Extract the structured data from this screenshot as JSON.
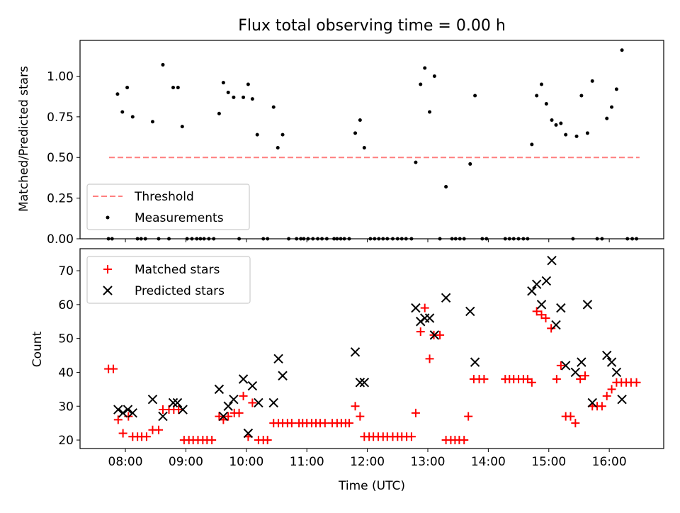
{
  "chart_data": [
    {
      "type": "scatter",
      "title": "Flux total observing time = 0.00 h",
      "xlabel": "",
      "ylabel": "Matched/Predicted stars",
      "xlim": [
        7.25,
        16.9
      ],
      "ylim": [
        0,
        1.22
      ],
      "yticks": [
        0,
        0.25,
        0.5,
        0.75,
        1.0
      ],
      "ytick_labels": [
        "0.00",
        "0.25",
        "0.50",
        "0.75",
        "1.00"
      ],
      "grid": false,
      "legend_position": "bottom-left",
      "threshold": {
        "name": "Threshold",
        "value": 0.5,
        "x_range": [
          7.73,
          16.5
        ],
        "color": "#ff7f7f"
      },
      "series": [
        {
          "name": "Measurements",
          "color": "#000000",
          "points": [
            [
              7.72,
              0
            ],
            [
              7.78,
              0
            ],
            [
              7.87,
              0.89
            ],
            [
              7.95,
              0.78
            ],
            [
              8.03,
              0.93
            ],
            [
              8.12,
              0.75
            ],
            [
              8.2,
              0
            ],
            [
              8.26,
              0
            ],
            [
              8.33,
              0
            ],
            [
              8.45,
              0.72
            ],
            [
              8.55,
              0
            ],
            [
              8.62,
              1.07
            ],
            [
              8.72,
              0
            ],
            [
              8.79,
              0.93
            ],
            [
              8.87,
              0.93
            ],
            [
              8.94,
              0.69
            ],
            [
              9.02,
              0
            ],
            [
              9.1,
              0
            ],
            [
              9.18,
              0
            ],
            [
              9.24,
              0
            ],
            [
              9.3,
              0
            ],
            [
              9.38,
              0
            ],
            [
              9.46,
              0
            ],
            [
              9.55,
              0.77
            ],
            [
              9.62,
              0.96
            ],
            [
              9.7,
              0.9
            ],
            [
              9.79,
              0.87
            ],
            [
              9.88,
              0
            ],
            [
              9.95,
              0.87
            ],
            [
              10.03,
              0.95
            ],
            [
              10.1,
              0.86
            ],
            [
              10.18,
              0.64
            ],
            [
              10.28,
              0
            ],
            [
              10.35,
              0
            ],
            [
              10.45,
              0.81
            ],
            [
              10.52,
              0.56
            ],
            [
              10.6,
              0.64
            ],
            [
              10.7,
              0
            ],
            [
              10.83,
              0
            ],
            [
              10.9,
              0
            ],
            [
              10.95,
              0
            ],
            [
              11.02,
              0
            ],
            [
              11.1,
              0
            ],
            [
              11.18,
              0
            ],
            [
              11.25,
              0
            ],
            [
              11.33,
              0
            ],
            [
              11.45,
              0
            ],
            [
              11.5,
              0
            ],
            [
              11.56,
              0
            ],
            [
              11.62,
              0
            ],
            [
              11.7,
              0
            ],
            [
              11.8,
              0.65
            ],
            [
              11.88,
              0.73
            ],
            [
              11.95,
              0.56
            ],
            [
              12.05,
              0
            ],
            [
              12.12,
              0
            ],
            [
              12.19,
              0
            ],
            [
              12.26,
              0
            ],
            [
              12.33,
              0
            ],
            [
              12.42,
              0
            ],
            [
              12.5,
              0
            ],
            [
              12.57,
              0
            ],
            [
              12.64,
              0
            ],
            [
              12.73,
              0
            ],
            [
              12.8,
              0.47
            ],
            [
              12.88,
              0.95
            ],
            [
              12.95,
              1.05
            ],
            [
              13.03,
              0.78
            ],
            [
              13.11,
              1.0
            ],
            [
              13.2,
              0
            ],
            [
              13.3,
              0.32
            ],
            [
              13.4,
              0
            ],
            [
              13.46,
              0
            ],
            [
              13.53,
              0
            ],
            [
              13.6,
              0
            ],
            [
              13.7,
              0.46
            ],
            [
              13.78,
              0.88
            ],
            [
              13.9,
              0
            ],
            [
              13.97,
              0
            ],
            [
              14.28,
              0
            ],
            [
              14.35,
              0
            ],
            [
              14.42,
              0
            ],
            [
              14.5,
              0
            ],
            [
              14.58,
              0
            ],
            [
              14.65,
              0
            ],
            [
              14.72,
              0.58
            ],
            [
              14.8,
              0.88
            ],
            [
              14.88,
              0.95
            ],
            [
              14.96,
              0.83
            ],
            [
              15.05,
              0.73
            ],
            [
              15.12,
              0.7
            ],
            [
              15.2,
              0.71
            ],
            [
              15.28,
              0.64
            ],
            [
              15.4,
              0
            ],
            [
              15.46,
              0.63
            ],
            [
              15.54,
              0.88
            ],
            [
              15.64,
              0.65
            ],
            [
              15.72,
              0.97
            ],
            [
              15.8,
              0
            ],
            [
              15.88,
              0
            ],
            [
              15.96,
              0.74
            ],
            [
              16.04,
              0.81
            ],
            [
              16.12,
              0.92
            ],
            [
              16.21,
              1.16
            ],
            [
              16.3,
              0
            ],
            [
              16.38,
              0
            ],
            [
              16.45,
              0
            ]
          ]
        }
      ],
      "legend": [
        "Threshold",
        "Measurements"
      ]
    },
    {
      "type": "scatter",
      "title": "",
      "xlabel": "Time (UTC)",
      "ylabel": "Count",
      "xlim": [
        7.25,
        16.9
      ],
      "ylim": [
        17.5,
        76.5
      ],
      "yticks": [
        20,
        30,
        40,
        50,
        60,
        70
      ],
      "ytick_labels": [
        "20",
        "30",
        "40",
        "50",
        "60",
        "70"
      ],
      "xticks": [
        8,
        9,
        10,
        11,
        12,
        13,
        14,
        15,
        16
      ],
      "xtick_labels": [
        "08:00",
        "09:00",
        "10:00",
        "11:00",
        "12:00",
        "13:00",
        "14:00",
        "15:00",
        "16:00"
      ],
      "grid": false,
      "legend_position": "top-left",
      "series": [
        {
          "name": "Matched stars",
          "marker": "plus",
          "color": "#ff0000",
          "points": [
            [
              7.72,
              41
            ],
            [
              7.8,
              41
            ],
            [
              7.88,
              26
            ],
            [
              7.96,
              22
            ],
            [
              8.05,
              27
            ],
            [
              8.12,
              21
            ],
            [
              8.2,
              21
            ],
            [
              8.27,
              21
            ],
            [
              8.35,
              21
            ],
            [
              8.45,
              23
            ],
            [
              8.55,
              23
            ],
            [
              8.62,
              29
            ],
            [
              8.72,
              29
            ],
            [
              8.8,
              29
            ],
            [
              8.88,
              29
            ],
            [
              8.97,
              20
            ],
            [
              9.05,
              20
            ],
            [
              9.12,
              20
            ],
            [
              9.2,
              20
            ],
            [
              9.28,
              20
            ],
            [
              9.35,
              20
            ],
            [
              9.43,
              20
            ],
            [
              9.55,
              27
            ],
            [
              9.62,
              26
            ],
            [
              9.7,
              27
            ],
            [
              9.8,
              28
            ],
            [
              9.88,
              28
            ],
            [
              9.95,
              33
            ],
            [
              10.03,
              21
            ],
            [
              10.1,
              31
            ],
            [
              10.2,
              20
            ],
            [
              10.28,
              20
            ],
            [
              10.35,
              20
            ],
            [
              10.45,
              25
            ],
            [
              10.53,
              25
            ],
            [
              10.6,
              25
            ],
            [
              10.68,
              25
            ],
            [
              10.75,
              25
            ],
            [
              10.87,
              25
            ],
            [
              10.93,
              25
            ],
            [
              11.0,
              25
            ],
            [
              11.08,
              25
            ],
            [
              11.15,
              25
            ],
            [
              11.22,
              25
            ],
            [
              11.3,
              25
            ],
            [
              11.42,
              25
            ],
            [
              11.5,
              25
            ],
            [
              11.57,
              25
            ],
            [
              11.64,
              25
            ],
            [
              11.7,
              25
            ],
            [
              11.8,
              30
            ],
            [
              11.88,
              27
            ],
            [
              11.95,
              21
            ],
            [
              12.03,
              21
            ],
            [
              12.1,
              21
            ],
            [
              12.18,
              21
            ],
            [
              12.26,
              21
            ],
            [
              12.33,
              21
            ],
            [
              12.42,
              21
            ],
            [
              12.5,
              21
            ],
            [
              12.57,
              21
            ],
            [
              12.65,
              21
            ],
            [
              12.73,
              21
            ],
            [
              12.8,
              28
            ],
            [
              12.88,
              52
            ],
            [
              12.95,
              59
            ],
            [
              13.03,
              44
            ],
            [
              13.1,
              51
            ],
            [
              13.2,
              51
            ],
            [
              13.3,
              20
            ],
            [
              13.38,
              20
            ],
            [
              13.45,
              20
            ],
            [
              13.52,
              20
            ],
            [
              13.6,
              20
            ],
            [
              13.67,
              27
            ],
            [
              13.76,
              38
            ],
            [
              13.85,
              38
            ],
            [
              13.93,
              38
            ],
            [
              14.28,
              38
            ],
            [
              14.35,
              38
            ],
            [
              14.42,
              38
            ],
            [
              14.5,
              38
            ],
            [
              14.58,
              38
            ],
            [
              14.65,
              38
            ],
            [
              14.72,
              37
            ],
            [
              14.8,
              58
            ],
            [
              14.88,
              57
            ],
            [
              14.95,
              56
            ],
            [
              15.04,
              53
            ],
            [
              15.13,
              38
            ],
            [
              15.2,
              42
            ],
            [
              15.28,
              27
            ],
            [
              15.36,
              27
            ],
            [
              15.44,
              25
            ],
            [
              15.52,
              38
            ],
            [
              15.6,
              39
            ],
            [
              15.72,
              30
            ],
            [
              15.8,
              30
            ],
            [
              15.88,
              30
            ],
            [
              15.96,
              33
            ],
            [
              16.04,
              35
            ],
            [
              16.12,
              37
            ],
            [
              16.2,
              37
            ],
            [
              16.28,
              37
            ],
            [
              16.36,
              37
            ],
            [
              16.45,
              37
            ]
          ]
        },
        {
          "name": "Predicted stars",
          "marker": "x",
          "color": "#000000",
          "points": [
            [
              7.88,
              29
            ],
            [
              7.96,
              28
            ],
            [
              8.04,
              29
            ],
            [
              8.12,
              28
            ],
            [
              8.45,
              32
            ],
            [
              8.62,
              27
            ],
            [
              8.79,
              31
            ],
            [
              8.86,
              31
            ],
            [
              8.95,
              29
            ],
            [
              9.55,
              35
            ],
            [
              9.62,
              27
            ],
            [
              9.7,
              30
            ],
            [
              9.79,
              32
            ],
            [
              9.95,
              38
            ],
            [
              10.03,
              22
            ],
            [
              10.1,
              36
            ],
            [
              10.2,
              31
            ],
            [
              10.45,
              31
            ],
            [
              10.53,
              44
            ],
            [
              10.6,
              39
            ],
            [
              11.8,
              46
            ],
            [
              11.88,
              37
            ],
            [
              11.95,
              37
            ],
            [
              12.8,
              59
            ],
            [
              12.88,
              55
            ],
            [
              12.95,
              56
            ],
            [
              13.03,
              56
            ],
            [
              13.11,
              51
            ],
            [
              13.3,
              62
            ],
            [
              13.7,
              58
            ],
            [
              13.78,
              43
            ],
            [
              14.72,
              64
            ],
            [
              14.8,
              66
            ],
            [
              14.88,
              60
            ],
            [
              14.96,
              67
            ],
            [
              15.05,
              73
            ],
            [
              15.12,
              54
            ],
            [
              15.2,
              59
            ],
            [
              15.28,
              42
            ],
            [
              15.44,
              40
            ],
            [
              15.54,
              43
            ],
            [
              15.64,
              60
            ],
            [
              15.72,
              31
            ],
            [
              15.96,
              45
            ],
            [
              16.04,
              43
            ],
            [
              16.12,
              40
            ],
            [
              16.21,
              32
            ]
          ]
        }
      ],
      "legend": [
        "Matched stars",
        "Predicted stars"
      ]
    }
  ]
}
